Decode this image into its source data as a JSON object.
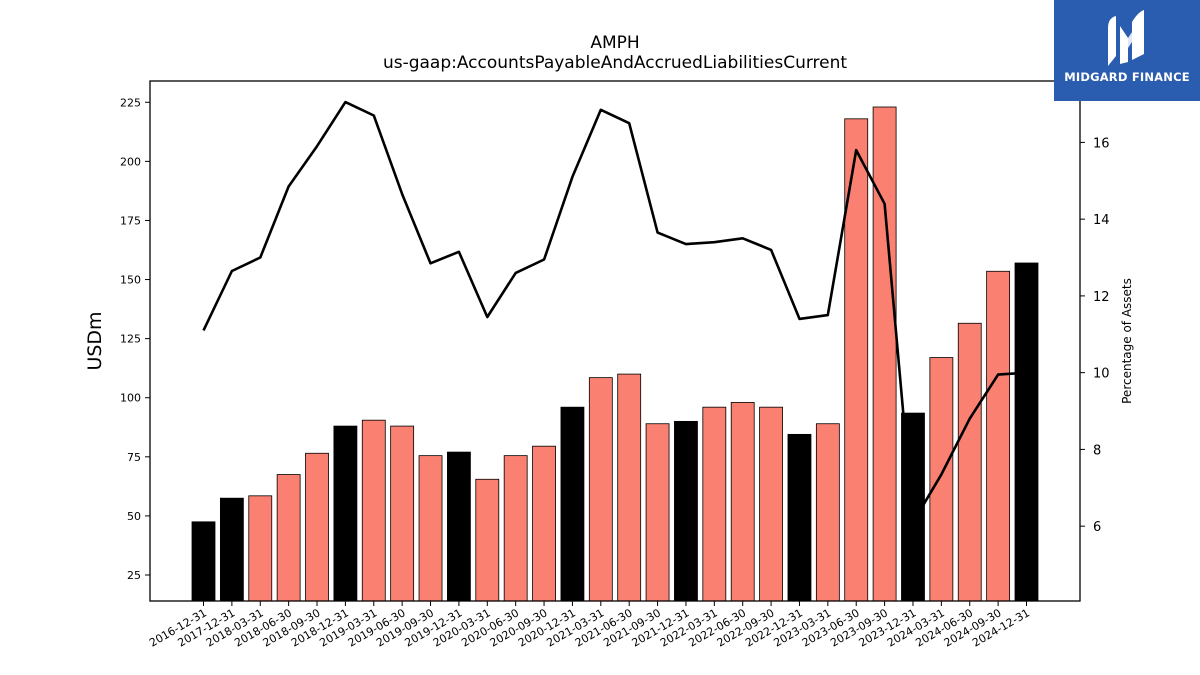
{
  "chart_data": {
    "type": "bar",
    "title": "AMPH",
    "subtitle": "us-gaap:AccountsPayableAndAccruedLiabilitiesCurrent",
    "ylabel": "USDm",
    "y2label": "Percentage of Assets",
    "ylim": [
      14,
      234
    ],
    "y2lim": [
      4.05,
      17.6
    ],
    "yticks": [
      25,
      50,
      75,
      100,
      125,
      150,
      175,
      200,
      225
    ],
    "y2ticks": [
      6,
      8,
      10,
      12,
      14,
      16
    ],
    "categories": [
      "2016-12-31",
      "2017-12-31",
      "2018-03-31",
      "2018-06-30",
      "2018-09-30",
      "2018-12-31",
      "2019-03-31",
      "2019-06-30",
      "2019-09-30",
      "2019-12-31",
      "2020-03-31",
      "2020-06-30",
      "2020-09-30",
      "2020-12-31",
      "2021-03-31",
      "2021-06-30",
      "2021-09-30",
      "2021-12-31",
      "2022-03-31",
      "2022-06-30",
      "2022-09-30",
      "2022-12-31",
      "2023-03-31",
      "2023-06-30",
      "2023-09-30",
      "2023-12-31",
      "2024-03-31",
      "2024-06-30",
      "2024-09-30",
      "2024-12-31"
    ],
    "series": [
      {
        "type": "bar",
        "values": [
          47.5,
          57.5,
          58.5,
          67.5,
          76.5,
          88,
          90.5,
          88,
          75.5,
          77,
          65.5,
          75.5,
          79.5,
          96,
          108.5,
          110,
          89,
          90,
          96,
          98,
          96,
          84.5,
          89,
          218,
          223,
          93.5,
          117,
          131.5,
          153.5,
          157
        ],
        "colors": [
          "#000000",
          "#000000",
          "#fa8072",
          "#fa8072",
          "#fa8072",
          "#000000",
          "#fa8072",
          "#fa8072",
          "#fa8072",
          "#000000",
          "#fa8072",
          "#fa8072",
          "#fa8072",
          "#000000",
          "#fa8072",
          "#fa8072",
          "#fa8072",
          "#000000",
          "#fa8072",
          "#fa8072",
          "#fa8072",
          "#000000",
          "#fa8072",
          "#fa8072",
          "#fa8072",
          "#000000",
          "#fa8072",
          "#fa8072",
          "#fa8072",
          "#000000"
        ]
      },
      {
        "type": "line",
        "axis": "right",
        "color": "#000000",
        "values": [
          11.1,
          12.65,
          13.0,
          14.85,
          15.9,
          17.05,
          16.7,
          14.65,
          12.85,
          13.15,
          11.45,
          12.6,
          12.95,
          15.1,
          16.85,
          16.5,
          13.65,
          13.35,
          13.4,
          13.5,
          13.2,
          11.4,
          11.5,
          15.8,
          14.4,
          6.1,
          7.35,
          8.8,
          9.95,
          10.0
        ]
      }
    ]
  },
  "logo": {
    "text": "MIDGARD FINANCE",
    "background": "#2a5caf",
    "icon": "mh-monogram-icon"
  }
}
